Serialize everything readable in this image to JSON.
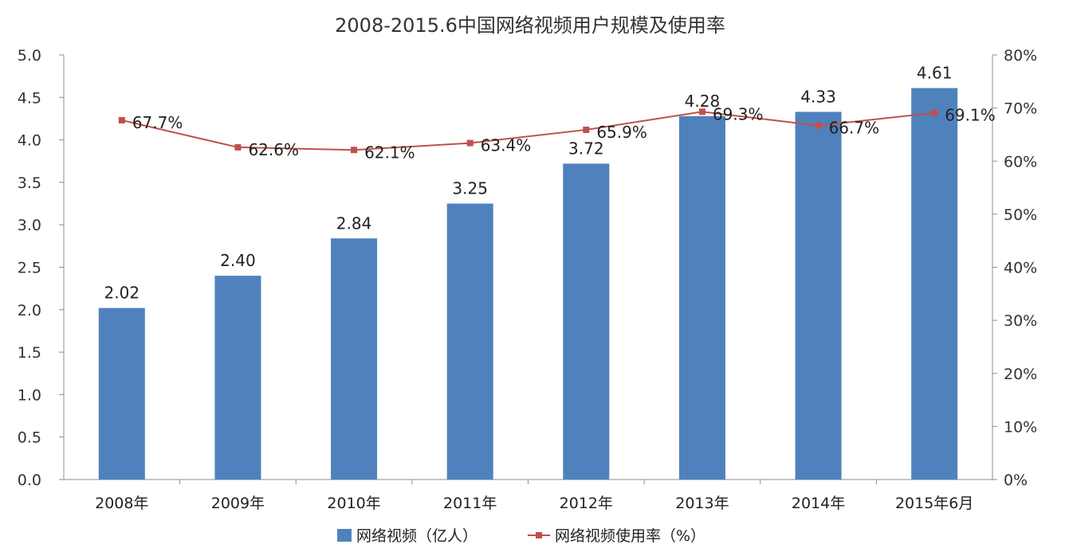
{
  "chart_data": {
    "type": "bar",
    "title": "2008-2015.6中国网络视频用户规模及使用率",
    "categories": [
      "2008年",
      "2009年",
      "2010年",
      "2011年",
      "2012年",
      "2013年",
      "2014年",
      "2015年6月"
    ],
    "series": [
      {
        "name": "网络视频（亿人）",
        "type": "bar",
        "axis": "left",
        "values": [
          2.02,
          2.4,
          2.84,
          3.25,
          3.72,
          4.28,
          4.33,
          4.61
        ],
        "labels": [
          "2.02",
          "2.40",
          "2.84",
          "3.25",
          "3.72",
          "4.28",
          "4.33",
          "4.61"
        ],
        "color": "#4F81BD"
      },
      {
        "name": "网络视频使用率（%）",
        "type": "line",
        "axis": "right",
        "values": [
          67.7,
          62.6,
          62.1,
          63.4,
          65.9,
          69.3,
          66.7,
          69.1
        ],
        "labels": [
          "67.7%",
          "62.6%",
          "62.1%",
          "63.4%",
          "65.9%",
          "69.3%",
          "66.7%",
          "69.1%"
        ],
        "color": "#C0504D"
      }
    ],
    "left_axis": {
      "ylim": [
        0,
        5
      ],
      "ticks": [
        "0.0",
        "0.5",
        "1.0",
        "1.5",
        "2.0",
        "2.5",
        "3.0",
        "3.5",
        "4.0",
        "4.5",
        "5.0"
      ]
    },
    "right_axis": {
      "ylim": [
        0,
        80
      ],
      "ticks": [
        "0%",
        "10%",
        "20%",
        "30%",
        "40%",
        "50%",
        "60%",
        "70%",
        "80%"
      ]
    },
    "grid": false,
    "legend": "bottom"
  }
}
